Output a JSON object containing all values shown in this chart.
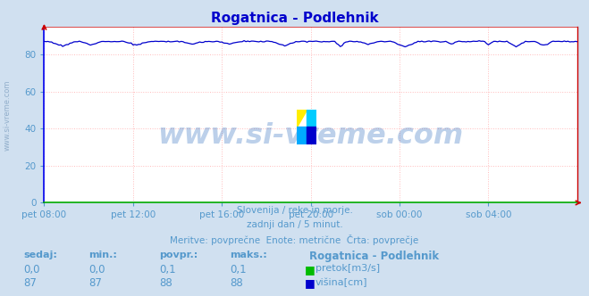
{
  "title": "Rogatnica - Podlehnik",
  "title_color": "#0000cc",
  "bg_color": "#d0e0f0",
  "plot_bg_color": "#ffffff",
  "grid_color": "#ffbbbb",
  "grid_style": ":",
  "left_spine_color": "#0000ee",
  "bottom_spine_color": "#00aa00",
  "right_spine_color": "#cc0000",
  "top_spine_color": "#cc0000",
  "text_color": "#5599cc",
  "subtitle_lines": [
    "Slovenija / reke in morje.",
    "zadnji dan / 5 minut.",
    "Meritve: povprečne  Enote: metrične  Črta: povprečje"
  ],
  "xlabel_ticks": [
    "pet 08:00",
    "pet 12:00",
    "pet 16:00",
    "pet 20:00",
    "sob 00:00",
    "sob 04:00"
  ],
  "yticks": [
    0,
    20,
    40,
    60,
    80
  ],
  "ylim": [
    0,
    95
  ],
  "xlim": [
    0,
    288
  ],
  "watermark": "www.si-vreme.com",
  "watermark_color": "#2266bb",
  "watermark_alpha": 0.3,
  "sidebar_text": "www.si-vreme.com",
  "sidebar_color": "#7799bb",
  "pretok_color": "#00bb00",
  "visina_color": "#0000cc",
  "table_headers": [
    "sedaj:",
    "min.:",
    "povpr.:",
    "maks.:"
  ],
  "table_pretok": [
    "0,0",
    "0,0",
    "0,1",
    "0,1"
  ],
  "table_visina": [
    "87",
    "87",
    "88",
    "88"
  ],
  "station_name": "Rogatnica - Podlehnik",
  "pretok_label": "pretok[m3/s]",
  "visina_label": "višina[cm]",
  "n_points": 289,
  "arrow_color": "#cc0000"
}
